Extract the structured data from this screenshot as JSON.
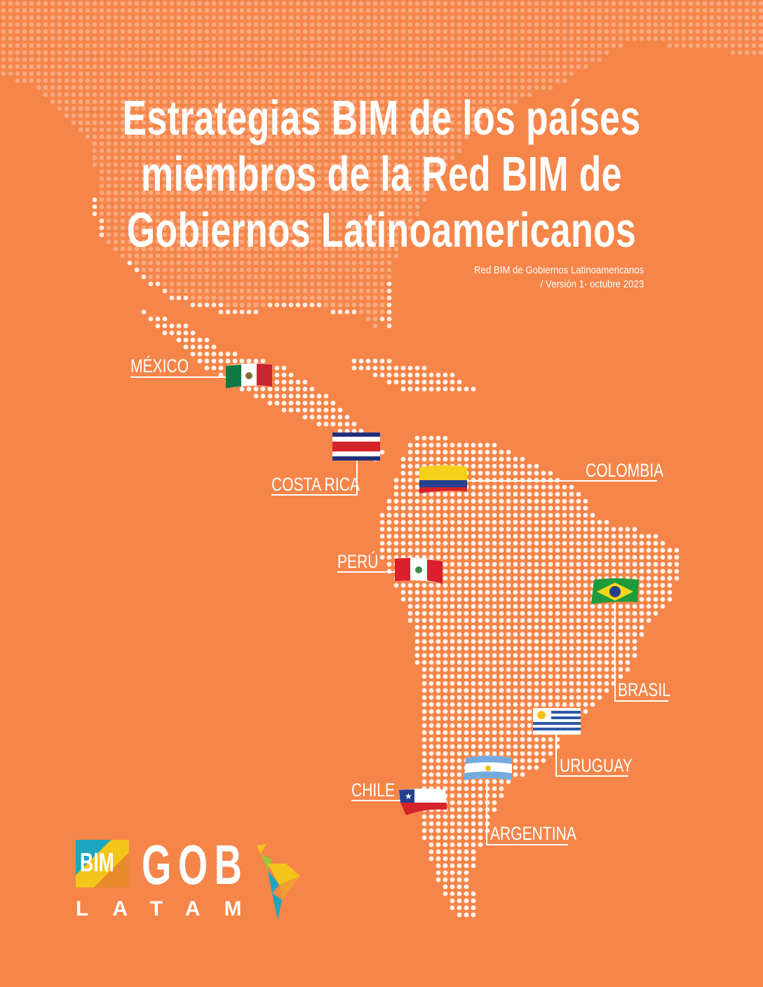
{
  "title": {
    "lines": [
      "Estrategias BIM de los países",
      "miembros de la Red BIM de",
      "Gobiernos Latinoamericanos"
    ]
  },
  "subtitle": {
    "line1": "Red BIM de Gobiernos Latinoamericanos",
    "line2": "/ Versión 1- octubre 2023"
  },
  "countries": [
    {
      "name": "MÉXICO",
      "flag": "mexico-flag"
    },
    {
      "name": "COSTA RICA",
      "flag": "costa-rica-flag"
    },
    {
      "name": "COLOMBIA",
      "flag": "colombia-flag"
    },
    {
      "name": "PERÚ",
      "flag": "peru-flag"
    },
    {
      "name": "BRASIL",
      "flag": "brazil-flag"
    },
    {
      "name": "URUGUAY",
      "flag": "uruguay-flag"
    },
    {
      "name": "ARGENTINA",
      "flag": "argentina-flag"
    },
    {
      "name": "CHILE",
      "flag": "chile-flag"
    }
  ],
  "logo": {
    "bim": "BIM",
    "gob": "GOB",
    "latam": "LATAM"
  },
  "colors": {
    "background": "#f58549",
    "text": "#ffffff",
    "logo_teal": "#1ea5c0",
    "logo_yellow": "#f4c51b"
  }
}
